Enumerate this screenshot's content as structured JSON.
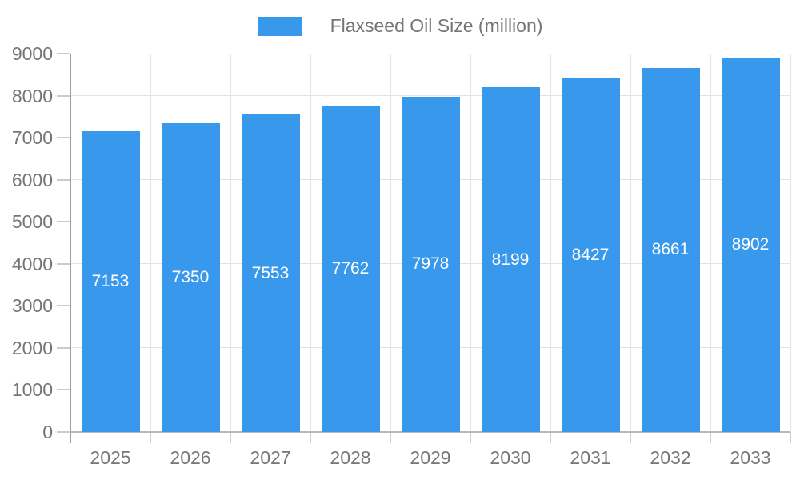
{
  "legend": {
    "label": "Flaxseed Oil Size (million)",
    "position": "top"
  },
  "chart_data": {
    "type": "bar",
    "title": "Flaxseed Oil Size (million)",
    "categories": [
      "2025",
      "2026",
      "2027",
      "2028",
      "2029",
      "2030",
      "2031",
      "2032",
      "2033"
    ],
    "values": [
      7153,
      7350,
      7553,
      7762,
      7978,
      8199,
      8427,
      8661,
      8902
    ],
    "xlabel": "",
    "ylabel": "",
    "ylim": [
      0,
      9000
    ],
    "ytick_step": 1000,
    "yticks": [
      0,
      1000,
      2000,
      3000,
      4000,
      5000,
      6000,
      7000,
      8000,
      9000
    ],
    "grid": true,
    "legend_position": "top",
    "bar_labels_inside": true,
    "colors": {
      "bar": "#3898ec",
      "bar_label": "#ffffff",
      "axis_text": "#757575",
      "gridline": "#e3e3e3",
      "tick": "#cccccc",
      "y_axis_line": "#9e9e9e",
      "x_axis_line": "#b8b8b8",
      "background": "#ffffff"
    }
  }
}
